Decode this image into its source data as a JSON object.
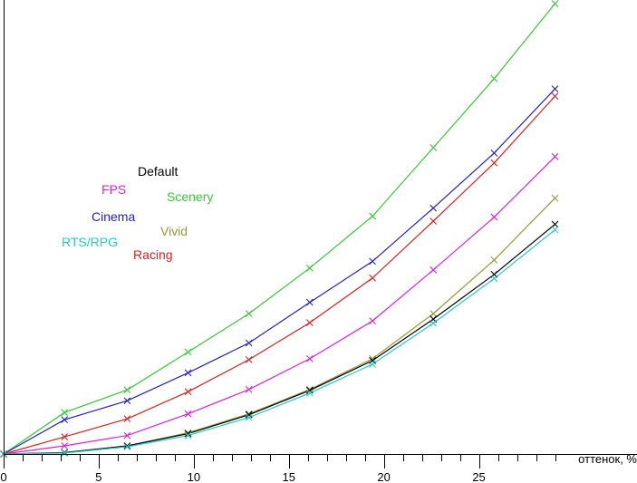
{
  "chart_data": {
    "type": "line",
    "xlabel": "оттенок, %",
    "ylabel": "",
    "xlim": [
      0,
      29.5
    ],
    "ylim": [
      0,
      100
    ],
    "x_ticks": [
      0,
      5,
      10,
      15,
      20,
      25
    ],
    "x_tick_labels": [
      "0",
      "5",
      "10",
      "15",
      "20",
      "25"
    ],
    "y_ticks": [],
    "grid": false,
    "x": [
      0,
      3.2,
      6.5,
      9.7,
      12.9,
      16.1,
      19.4,
      22.6,
      25.8,
      29.0
    ],
    "series": [
      {
        "name": "Scenery",
        "color": "#33cc33",
        "values": [
          0,
          9.2,
          14.2,
          22.6,
          31.1,
          41.2,
          52.7,
          67.9,
          83.2,
          99.8
        ]
      },
      {
        "name": "Cinema",
        "color": "#2222cc",
        "values": [
          0,
          7.6,
          11.8,
          18.0,
          24.6,
          33.6,
          42.7,
          54.5,
          66.7,
          80.9
        ]
      },
      {
        "name": "Racing",
        "color": "#dd2222",
        "values": [
          0,
          3.8,
          7.8,
          13.8,
          20.9,
          29.1,
          39.0,
          51.6,
          64.5,
          79.3
        ]
      },
      {
        "name": "FPS",
        "color": "#dd22dd",
        "values": [
          0,
          1.8,
          4.1,
          8.9,
          14.3,
          21.1,
          29.5,
          40.8,
          52.5,
          65.9
        ]
      },
      {
        "name": "Vivid",
        "color": "#999933",
        "values": [
          0,
          0.3,
          1.8,
          4.7,
          8.9,
          14.3,
          21.1,
          31.1,
          43.0,
          56.7
        ]
      },
      {
        "name": "Default",
        "color": "#000000",
        "values": [
          0,
          0.3,
          1.8,
          4.5,
          8.7,
          14.1,
          20.7,
          29.9,
          39.8,
          50.9
        ]
      },
      {
        "name": "RTS/RPG",
        "color": "#22cccc",
        "values": [
          0,
          0.2,
          1.6,
          4.1,
          8.1,
          13.5,
          19.9,
          29.0,
          38.9,
          49.7
        ]
      }
    ]
  }
}
